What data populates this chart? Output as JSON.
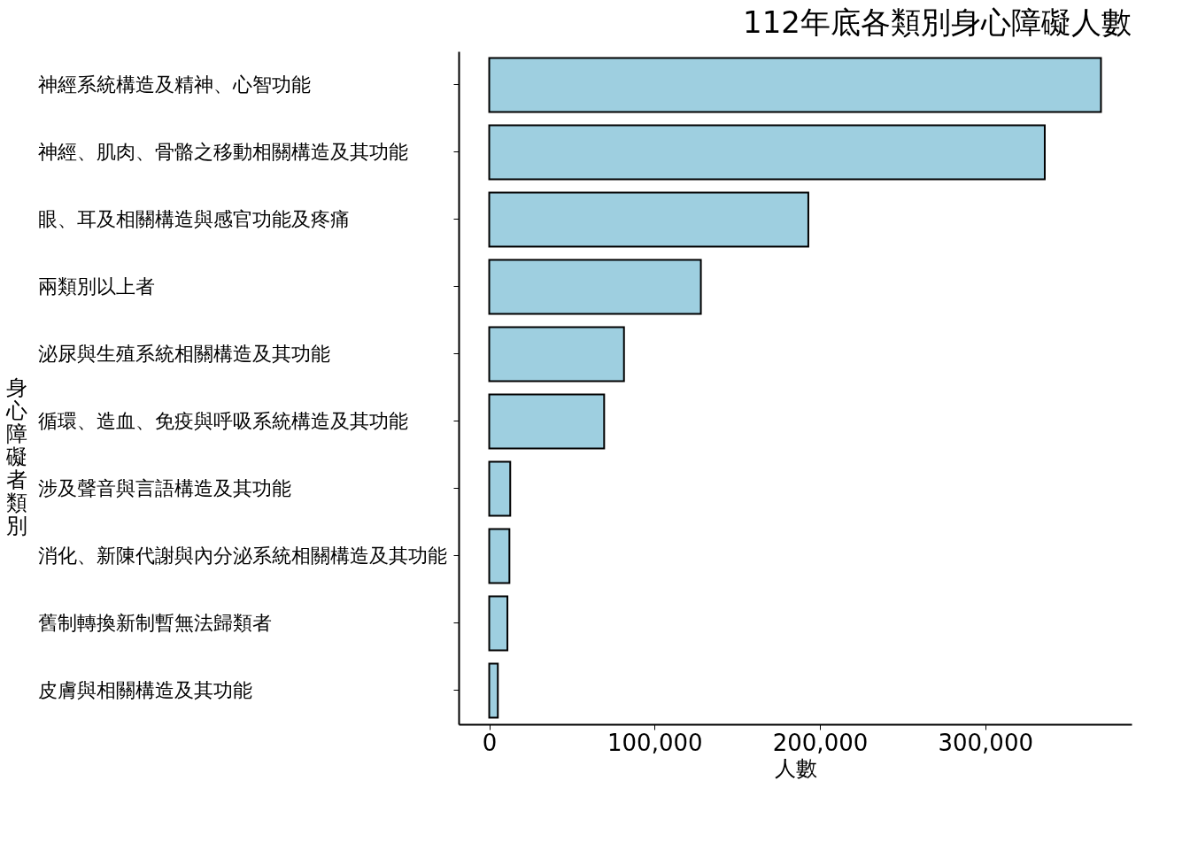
{
  "chart_data": {
    "type": "bar",
    "orientation": "horizontal",
    "title": "112年底各類別身心障礙人數",
    "xlabel": "人數",
    "ylabel": "身心障礙者類別",
    "categories": [
      "神經系統構造及精神、心智功能",
      "神經、肌肉、骨骼之移動相關構造及其功能",
      "眼、耳及相關構造與感官功能及疼痛",
      "兩類別以上者",
      "泌尿與生殖系統相關構造及其功能",
      "循環、造血、免疫與呼吸系統構造及其功能",
      "涉及聲音與言語構造及其功能",
      "消化、新陳代謝與內分泌系統相關構造及其功能",
      "舊制轉換新制暫無法歸類者",
      "皮膚與相關構造及其功能"
    ],
    "values": [
      370000,
      336000,
      193000,
      128000,
      81500,
      69500,
      12700,
      12200,
      11000,
      5200
    ],
    "color": "#9ecfe0",
    "xlim": [
      -18500,
      388500
    ],
    "xticks": [
      0,
      {
        "value": 100000,
        "label": "100,000"
      },
      {
        "value": 200000,
        "label": "200,000"
      },
      {
        "value": 300000,
        "label": "300,000"
      }
    ],
    "grid": false
  }
}
